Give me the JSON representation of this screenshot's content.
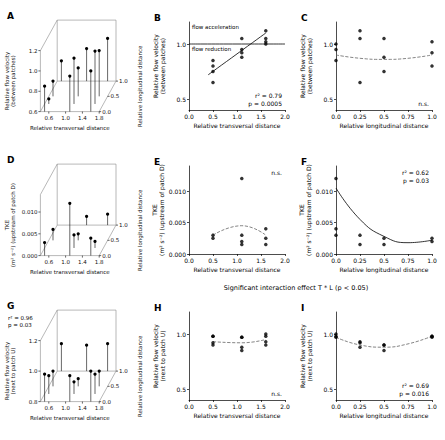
{
  "chart_data": [
    {
      "type": "scatter3d",
      "title": "A",
      "xlabel": "Relative transversal distance",
      "ylabel": "Relative longitudinal distance",
      "zlabel": "Relative flow velocity (between patches)",
      "xlim": [
        0.4,
        1.8
      ],
      "xticks": [
        0.6,
        {
          "value": 1,
          "label": "1.0"
        },
        1.4,
        1.8
      ],
      "ylim": [
        0,
        1
      ],
      "yticks": [
        {
          "value": 0,
          "label": "0.0"
        },
        0.5,
        {
          "value": 1,
          "label": "1.0"
        }
      ],
      "zlim": [
        0.6,
        1.2
      ],
      "zticks": [
        0.6,
        0.8,
        {
          "value": 1,
          "label": "1.0"
        },
        1.2
      ],
      "series": [
        {
          "type": "scatter",
          "color": "#000000",
          "x": [
            0.5,
            0.5,
            0.5,
            0.5,
            1.1,
            1.1,
            1.1,
            1.1,
            1.6,
            1.6,
            1.6,
            1.6
          ],
          "y": [
            0,
            0.25,
            0.5,
            1,
            0,
            0.25,
            0.5,
            1,
            0,
            0.25,
            0.5,
            1
          ],
          "z": [
            0.85,
            0.65,
            0.75,
            0.8,
            0.95,
            1.05,
            0.88,
            0.92,
            1.0,
            1.12,
            1.05,
            1.02
          ]
        }
      ],
      "annotations": []
    },
    {
      "type": "scatter",
      "title": "B",
      "xlabel": "Relative transversal distance",
      "ylabel": "Relative flow velocity (between patches)",
      "xlim": [
        0,
        2
      ],
      "xticks": [
        {
          "value": 0,
          "label": "0.0"
        },
        0.5,
        {
          "value": 1,
          "label": "1.0"
        },
        1.5,
        {
          "value": 2,
          "label": "2.0"
        }
      ],
      "ylim": [
        0.4,
        1.2
      ],
      "yticks": [
        0.5,
        {
          "value": 1,
          "label": "1.0"
        }
      ],
      "series": [
        {
          "type": "line",
          "line_style": "solid",
          "color": "#000000",
          "x": [
            0,
            2
          ],
          "values": [
            1,
            1
          ],
          "above_label": "flow acceleration",
          "below_label": "flow reduction"
        },
        {
          "type": "scatter",
          "color": "#000000",
          "x": [
            0.5,
            0.5,
            0.5,
            0.5,
            1.1,
            1.1,
            1.1,
            1.1,
            1.6,
            1.6,
            1.6,
            1.6
          ],
          "values": [
            0.85,
            0.65,
            0.75,
            0.8,
            0.95,
            1.05,
            0.88,
            0.92,
            1.0,
            1.12,
            1.05,
            1.02
          ]
        },
        {
          "type": "line",
          "line_style": "solid",
          "color": "#000000",
          "x": [
            0.4,
            1.6
          ],
          "values": [
            0.72,
            1.1
          ]
        }
      ],
      "annotations": [
        "r² = 0.79",
        "p = 0.0005"
      ]
    },
    {
      "type": "scatter",
      "title": "C",
      "xlabel": "Relative longitudinal distance",
      "ylabel": "Relative flow velocity (between patches)",
      "xlim": [
        0,
        1
      ],
      "xticks": [
        {
          "value": 0,
          "label": "0.0"
        },
        0.25,
        0.5,
        0.75,
        {
          "value": 1,
          "label": "1.0"
        }
      ],
      "ylim": [
        0.4,
        1.2
      ],
      "yticks": [
        0.5,
        {
          "value": 1,
          "label": "1.0"
        }
      ],
      "series": [
        {
          "type": "scatter",
          "color": "#000000",
          "x": [
            0,
            0.25,
            0.5,
            1,
            0,
            0.25,
            0.5,
            1,
            0,
            0.25,
            0.5,
            1
          ],
          "values": [
            0.85,
            0.65,
            0.75,
            0.8,
            0.95,
            1.05,
            0.88,
            0.92,
            1.0,
            1.12,
            1.05,
            1.02
          ]
        },
        {
          "type": "line",
          "line_style": "dashed",
          "color": "#666666",
          "x": [
            0,
            0.25,
            0.5,
            0.75,
            1
          ],
          "values": [
            0.9,
            0.87,
            0.86,
            0.87,
            0.9
          ]
        }
      ],
      "annotations": [
        "n.s."
      ]
    },
    {
      "type": "scatter3d",
      "title": "D",
      "xlabel": "Relative transversal distance",
      "ylabel": "Relative longitudinal distance",
      "zlabel": "TKE (m² s⁻²) (upstream of patch D)",
      "xlim": [
        0.4,
        1.8
      ],
      "xticks": [
        0.6,
        {
          "value": 1,
          "label": "1.0"
        },
        1.4,
        1.8
      ],
      "ylim": [
        0,
        1
      ],
      "yticks": [
        {
          "value": 0,
          "label": "0.0"
        },
        0.5,
        {
          "value": 1,
          "label": "1.0"
        }
      ],
      "zlim": [
        0,
        0.014
      ],
      "zticks": [
        {
          "value": 0,
          "label": "0.000"
        },
        0.005,
        {
          "value": 0.01,
          "label": "0.010"
        }
      ],
      "series": [
        {
          "type": "scatter",
          "color": "#000000",
          "x": [
            0.5,
            0.5,
            1.1,
            1.1,
            1.1,
            1.1,
            1.6,
            1.6,
            1.6
          ],
          "y": [
            0,
            0.5,
            0,
            0.25,
            0.5,
            1,
            0,
            0.25,
            1
          ],
          "z": [
            0.003,
            0.0025,
            0.012,
            0.003,
            0.0015,
            0.002,
            0.004,
            0.0015,
            0.0025
          ]
        }
      ],
      "annotations": []
    },
    {
      "type": "scatter",
      "title": "E",
      "xlabel": "Relative transversal distance",
      "ylabel": "TKE (m² s⁻²) (upstream of patch D)",
      "xlim": [
        0,
        2
      ],
      "xticks": [
        {
          "value": 0,
          "label": "0.0"
        },
        0.5,
        {
          "value": 1,
          "label": "1.0"
        },
        1.5,
        {
          "value": 2,
          "label": "2.0"
        }
      ],
      "ylim": [
        0,
        0.014
      ],
      "yticks": [
        {
          "value": 0,
          "label": "0.000"
        },
        0.005,
        {
          "value": 0.01,
          "label": "0.010"
        }
      ],
      "series": [
        {
          "type": "scatter",
          "color": "#000000",
          "x": [
            0.5,
            0.5,
            1.1,
            1.1,
            1.1,
            1.1,
            1.6,
            1.6,
            1.6
          ],
          "values": [
            0.003,
            0.0025,
            0.012,
            0.003,
            0.0015,
            0.002,
            0.004,
            0.0015,
            0.0025
          ]
        },
        {
          "type": "line",
          "line_style": "dashed",
          "color": "#666666",
          "x": [
            0.5,
            1.1,
            1.6
          ],
          "values": [
            0.003,
            0.0045,
            0.003
          ]
        }
      ],
      "annotations": [
        "n.s."
      ]
    },
    {
      "type": "scatter",
      "title": "F",
      "xlabel": "Relative longitudinal distance",
      "ylabel": "TKE (m² s⁻²) (upstream of patch D)",
      "xlim": [
        0,
        1
      ],
      "xticks": [
        {
          "value": 0,
          "label": "0.0"
        },
        0.25,
        0.5,
        0.75,
        {
          "value": 1,
          "label": "1.0"
        }
      ],
      "ylim": [
        0,
        0.014
      ],
      "yticks": [
        {
          "value": 0,
          "label": "0.000"
        },
        0.005,
        {
          "value": 0.01,
          "label": "0.010"
        }
      ],
      "series": [
        {
          "type": "scatter",
          "color": "#000000",
          "x": [
            0,
            0.5,
            0,
            0.25,
            0.5,
            1,
            0,
            0.25,
            1
          ],
          "values": [
            0.003,
            0.0025,
            0.012,
            0.003,
            0.0015,
            0.002,
            0.004,
            0.0015,
            0.0025
          ]
        },
        {
          "type": "line",
          "line_style": "solid",
          "color": "#000000",
          "x": [
            0,
            0.25,
            0.5,
            0.75,
            1
          ],
          "values": [
            0.0105,
            0.0055,
            0.0028,
            0.0018,
            0.0022
          ]
        }
      ],
      "annotations": [
        "r² = 0.62",
        "p = 0.03"
      ]
    },
    {
      "type": "scatter3d",
      "title": "G",
      "xlabel": "Relative transversal distance",
      "ylabel": "Relative longitudinal distance",
      "zlabel": "Relative flow velocity (next to patch U)",
      "xlim": [
        0.4,
        1.8
      ],
      "xticks": [
        0.6,
        {
          "value": 1,
          "label": "1.0"
        },
        1.4,
        1.8
      ],
      "ylim": [
        0,
        1
      ],
      "yticks": [
        {
          "value": 0,
          "label": "0.0"
        },
        0.5,
        {
          "value": 1,
          "label": "1.0"
        }
      ],
      "zlim": [
        0.8,
        1.2
      ],
      "zticks": [
        0.8,
        {
          "value": 1,
          "label": "1.0"
        },
        1.2
      ],
      "series": [
        {
          "type": "scatter",
          "color": "#000000",
          "x": [
            0.5,
            0.5,
            0.5,
            0.5,
            1.1,
            1.1,
            1.1,
            1.1,
            1.6,
            1.6,
            1.6,
            1.6
          ],
          "y": [
            0,
            0.25,
            0.5,
            1,
            0,
            0.25,
            0.5,
            1,
            0,
            0.25,
            0.5,
            1
          ],
          "z": [
            0.98,
            0.92,
            0.9,
            0.98,
            0.97,
            0.88,
            0.85,
            0.97,
            1.0,
            0.93,
            0.9,
            0.98
          ]
        }
      ],
      "annotations": [
        "r² = 0.96",
        "p = 0.03"
      ]
    },
    {
      "type": "scatter",
      "title": "H",
      "subtitle": "Significant interaction effect T * L (p < 0.05)",
      "xlabel": "Relative transversal distance",
      "ylabel": "Relative flow velocity (next to patch U)",
      "xlim": [
        0,
        2
      ],
      "xticks": [
        {
          "value": 0,
          "label": "0.0"
        },
        0.5,
        {
          "value": 1,
          "label": "1.0"
        },
        1.5,
        {
          "value": 2,
          "label": "2.0"
        }
      ],
      "ylim": [
        0.4,
        1.2
      ],
      "yticks": [
        0.5,
        {
          "value": 1,
          "label": "1.0"
        }
      ],
      "series": [
        {
          "type": "scatter",
          "color": "#000000",
          "x": [
            0.5,
            0.5,
            0.5,
            0.5,
            1.1,
            1.1,
            1.1,
            1.1,
            1.6,
            1.6,
            1.6,
            1.6
          ],
          "values": [
            0.98,
            0.92,
            0.9,
            0.98,
            0.97,
            0.88,
            0.85,
            0.97,
            1.0,
            0.93,
            0.9,
            0.98
          ]
        },
        {
          "type": "line",
          "line_style": "dashed",
          "color": "#666666",
          "x": [
            0.5,
            1.1,
            1.6
          ],
          "values": [
            0.93,
            0.92,
            0.95
          ]
        }
      ],
      "annotations": [
        "n.s."
      ]
    },
    {
      "type": "scatter",
      "title": "I",
      "xlabel": "Relative longitudinal distance",
      "ylabel": "Relative flow velocity (next to patch U)",
      "xlim": [
        0,
        1
      ],
      "xticks": [
        {
          "value": 0,
          "label": "0.0"
        },
        0.25,
        0.5,
        0.75,
        {
          "value": 1,
          "label": "1.0"
        }
      ],
      "ylim": [
        0.4,
        1.2
      ],
      "yticks": [
        0.5,
        {
          "value": 1,
          "label": "1.0"
        }
      ],
      "series": [
        {
          "type": "scatter",
          "color": "#000000",
          "x": [
            0,
            0.25,
            0.5,
            1,
            0,
            0.25,
            0.5,
            1,
            0,
            0.25,
            0.5,
            1
          ],
          "values": [
            0.98,
            0.92,
            0.9,
            0.98,
            0.97,
            0.88,
            0.85,
            0.97,
            1.0,
            0.93,
            0.9,
            0.98
          ]
        },
        {
          "type": "line",
          "line_style": "dashed",
          "color": "#666666",
          "x": [
            0,
            0.25,
            0.5,
            0.75,
            1
          ],
          "values": [
            0.97,
            0.9,
            0.88,
            0.91,
            0.98
          ]
        }
      ],
      "annotations": [
        "r² = 0.69",
        "p = 0.016"
      ]
    }
  ]
}
